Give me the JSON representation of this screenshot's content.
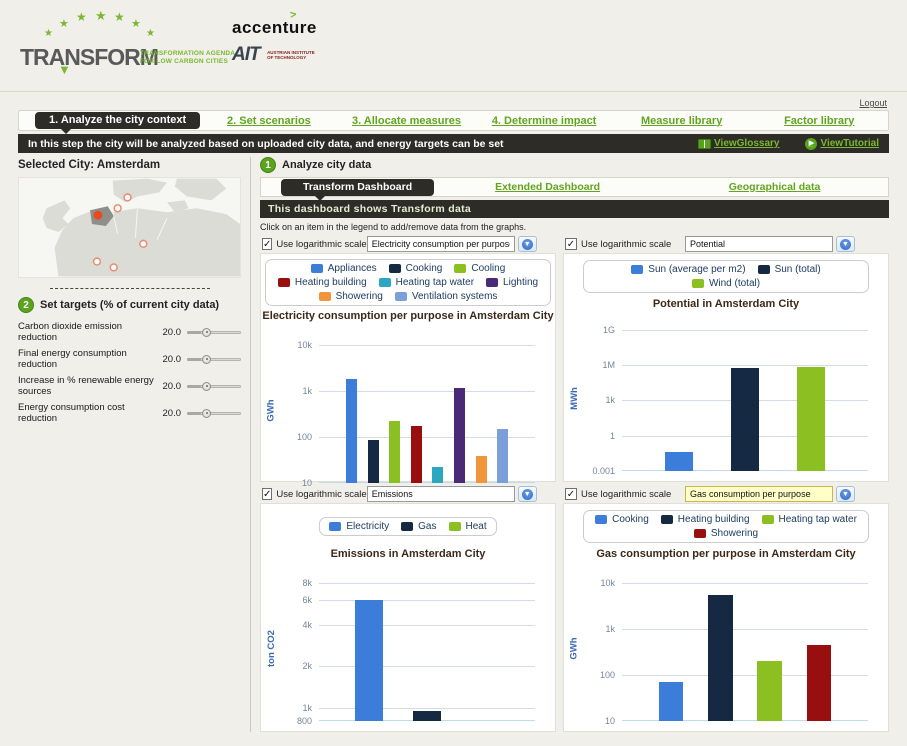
{
  "page": {
    "background": "#f0efea",
    "accent_green": "#61a51f",
    "dark_bar": "#2d2c27"
  },
  "header": {
    "transform": {
      "name": "TRANSFORM",
      "tagline1": "TRANSFORMATION AGENDA",
      "tagline2": "FOR LOW CARBON CITIES"
    },
    "accenture": {
      "name": "accenture"
    },
    "ait": {
      "name": "AIT",
      "sub1": "AUSTRIAN INSTITUTE",
      "sub2": "OF TECHNOLOGY"
    },
    "logout": "Logout"
  },
  "nav": {
    "tabs": [
      {
        "label": "1. Analyze the city context",
        "active": true
      },
      {
        "label": "2. Set scenarios",
        "active": false
      },
      {
        "label": "3. Allocate measures",
        "active": false
      },
      {
        "label": "4. Determine impact",
        "active": false
      },
      {
        "label": "Measure library",
        "active": false
      },
      {
        "label": "Factor library",
        "active": false
      }
    ]
  },
  "info_bar": {
    "message": "In this step the city will be analyzed based on uploaded city data, and energy targets can be set",
    "glossary": "ViewGlossary",
    "tutorial": "ViewTutorial"
  },
  "sidebar": {
    "selected_city": "Selected City: Amsterdam",
    "targets": {
      "step": "2",
      "heading": "Set targets (% of current city data)",
      "rows": [
        {
          "label": "Carbon dioxide emission reduction",
          "value": "20.0"
        },
        {
          "label": "Final energy consumption reduction",
          "value": "20.0"
        },
        {
          "label": "Increase in % renewable energy sources",
          "value": "20.0"
        },
        {
          "label": "Energy consumption cost reduction",
          "value": "20.0"
        }
      ]
    }
  },
  "main": {
    "step": "1",
    "title": "Analyze city data",
    "tabs": [
      {
        "label": "Transform Dashboard",
        "active": true
      },
      {
        "label": "Extended Dashboard",
        "active": false
      },
      {
        "label": "Geographical data",
        "active": false
      }
    ],
    "banner": "This dashboard shows Transform data",
    "hint": "Click on an item in the legend to add/remove data from the graphs.",
    "log_label": "Use logarithmic scale"
  },
  "charts": [
    {
      "dropdown": "Electricity consumption per purpose",
      "log_checked": true,
      "highlight": false,
      "title": "Electricity consumption per purpose in Amsterdam City",
      "chart_data": {
        "type": "bar",
        "scale": "log",
        "ylabel": "GWh",
        "categories": [
          "Appliances",
          "Cooking",
          "Cooling",
          "Heating building",
          "Heating tap water",
          "Lighting",
          "Showering",
          "Ventilation systems"
        ],
        "values": [
          1800,
          85,
          220,
          175,
          22,
          1150,
          38,
          145
        ],
        "colors": [
          "#3c7dd9",
          "#152a42",
          "#8cbf22",
          "#990f0f",
          "#2ba8bf",
          "#4a2a78",
          "#f0953b",
          "#7d9fd9"
        ],
        "yticks": [
          {
            "label": "10k",
            "v": 10000
          },
          {
            "label": "1k",
            "v": 1000
          },
          {
            "label": "100",
            "v": 100
          },
          {
            "label": "10",
            "v": 10
          }
        ],
        "ymin": 10,
        "ymax": 14000
      }
    },
    {
      "dropdown": "Potential",
      "log_checked": true,
      "highlight": false,
      "title": "Potential in Amsterdam City",
      "chart_data": {
        "type": "bar",
        "scale": "log",
        "ylabel": "MWh",
        "categories": [
          "Sun (average per m2)",
          "Sun (total)",
          "Wind (total)"
        ],
        "values": [
          0.04,
          600000,
          680000
        ],
        "colors": [
          "#3c7dd9",
          "#152a42",
          "#8cbf22"
        ],
        "yticks": [
          {
            "label": "1G",
            "v": 1000000000
          },
          {
            "label": "1M",
            "v": 1000000
          },
          {
            "label": "1k",
            "v": 1000
          },
          {
            "label": "1",
            "v": 1
          },
          {
            "label": "0.001",
            "v": 0.001
          }
        ],
        "ymin": 0.001,
        "ymax": 2000000000
      }
    },
    {
      "dropdown": "Emissions",
      "log_checked": true,
      "highlight": false,
      "title": "Emissions in Amsterdam City",
      "chart_data": {
        "type": "bar",
        "scale": "log",
        "ylabel": "ton CO2",
        "categories": [
          "Electricity",
          "Gas",
          "Heat"
        ],
        "values": [
          6000,
          950,
          null
        ],
        "colors": [
          "#3c7dd9",
          "#152a42",
          "#8cbf22"
        ],
        "yticks": [
          {
            "label": "8k",
            "v": 8000
          },
          {
            "label": "6k",
            "v": 6000
          },
          {
            "label": "4k",
            "v": 4000
          },
          {
            "label": "2k",
            "v": 2000
          },
          {
            "label": "1k",
            "v": 1000
          },
          {
            "label": "800",
            "v": 800
          }
        ],
        "ymin": 800,
        "ymax": 9000
      }
    },
    {
      "dropdown": "Gas consumption per purpose",
      "log_checked": true,
      "highlight": true,
      "title": "Gas consumption per purpose in Amsterdam City",
      "chart_data": {
        "type": "bar",
        "scale": "log",
        "ylabel": "GWh",
        "categories": [
          "Cooking",
          "Heating building",
          "Heating tap water",
          "Showering"
        ],
        "values": [
          70,
          5500,
          200,
          450
        ],
        "colors": [
          "#3c7dd9",
          "#152a42",
          "#8cbf22",
          "#990f0f"
        ],
        "yticks": [
          {
            "label": "10k",
            "v": 10000
          },
          {
            "label": "1k",
            "v": 1000
          },
          {
            "label": "100",
            "v": 100
          },
          {
            "label": "10",
            "v": 10
          }
        ],
        "ymin": 10,
        "ymax": 14000
      }
    }
  ]
}
